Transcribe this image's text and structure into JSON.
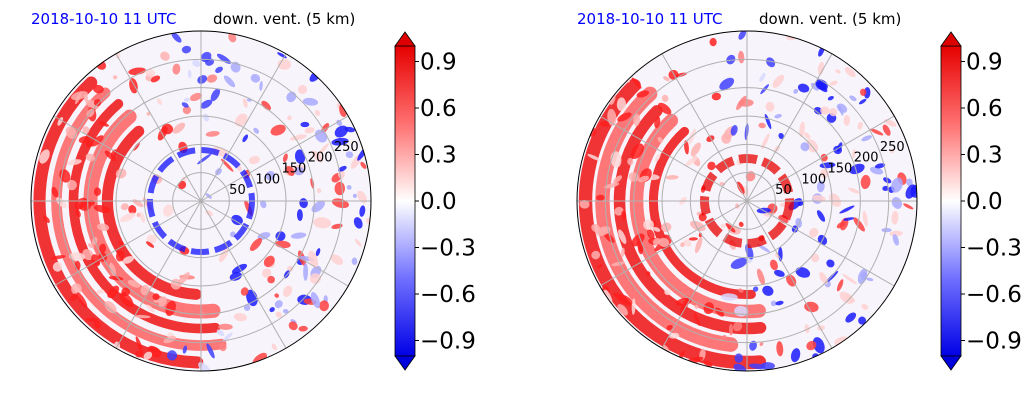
{
  "chart_data": [
    {
      "type": "heatmap",
      "projection": "polar",
      "date_label": "2018-10-10 11 UTC",
      "title": "down. vent. (5 km)",
      "radial_ticks": [
        "50",
        "100",
        "150",
        "200",
        "250"
      ],
      "radial_values": [
        50,
        100,
        150,
        200,
        250
      ],
      "rmax": 300,
      "colorbar": {
        "ticks": [
          "0.9",
          "0.6",
          "0.3",
          "0.0",
          "−0.3",
          "−0.6",
          "−0.9"
        ],
        "tick_values": [
          0.9,
          0.6,
          0.3,
          0.0,
          -0.3,
          -0.6,
          -0.9
        ],
        "vmin": -1.0,
        "vmax": 1.0,
        "cmap": "bwr",
        "extend": "both"
      },
      "colors": {
        "date": "#0000ff",
        "grid": "#b0b0b0"
      }
    },
    {
      "type": "heatmap",
      "projection": "polar",
      "date_label": "2018-10-10 11 UTC",
      "title": "down. vent. (5 km)",
      "radial_ticks": [
        "50",
        "100",
        "150",
        "200",
        "250"
      ],
      "radial_values": [
        50,
        100,
        150,
        200,
        250
      ],
      "rmax": 300,
      "colorbar": {
        "ticks": [
          "0.9",
          "0.6",
          "0.3",
          "0.0",
          "−0.3",
          "−0.6",
          "−0.9"
        ],
        "tick_values": [
          0.9,
          0.6,
          0.3,
          0.0,
          -0.3,
          -0.6,
          -0.9
        ],
        "vmin": -1.0,
        "vmax": 1.0,
        "cmap": "bwr",
        "extend": "both"
      },
      "colors": {
        "date": "#0000ff",
        "grid": "#b0b0b0"
      }
    }
  ]
}
